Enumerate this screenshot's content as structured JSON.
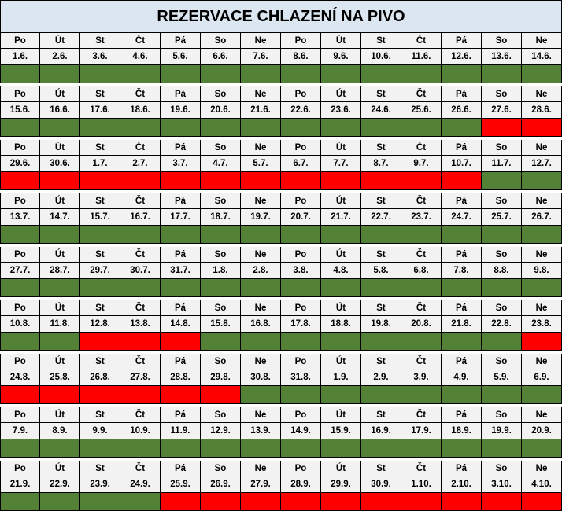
{
  "title": "REZERVACE CHLAZENÍ NA PIVO",
  "colors": {
    "free": "#538135",
    "reserved": "#ff0000",
    "header_bg": "#dce6f1",
    "cell_bg": "#f2f2f2"
  },
  "days": [
    "Po",
    "Út",
    "St",
    "Čt",
    "Pá",
    "So",
    "Ne",
    "Po",
    "Út",
    "St",
    "Čt",
    "Pá",
    "So",
    "Ne"
  ],
  "weeks": [
    {
      "dates": [
        "1.6.",
        "2.6.",
        "3.6.",
        "4.6.",
        "5.6.",
        "6.6.",
        "7.6.",
        "8.6.",
        "9.6.",
        "10.6.",
        "11.6.",
        "12.6.",
        "13.6.",
        "14.6."
      ],
      "status": [
        "free",
        "free",
        "free",
        "free",
        "free",
        "free",
        "free",
        "free",
        "free",
        "free",
        "free",
        "free",
        "free",
        "free"
      ]
    },
    {
      "dates": [
        "15.6.",
        "16.6.",
        "17.6.",
        "18.6.",
        "19.6.",
        "20.6.",
        "21.6.",
        "22.6.",
        "23.6.",
        "24.6.",
        "25.6.",
        "26.6.",
        "27.6.",
        "28.6."
      ],
      "status": [
        "free",
        "free",
        "free",
        "free",
        "free",
        "free",
        "free",
        "free",
        "free",
        "free",
        "free",
        "free",
        "reserved",
        "reserved"
      ]
    },
    {
      "dates": [
        "29.6.",
        "30.6.",
        "1.7.",
        "2.7.",
        "3.7.",
        "4.7.",
        "5.7.",
        "6.7.",
        "7.7.",
        "8.7.",
        "9.7.",
        "10.7.",
        "11.7.",
        "12.7."
      ],
      "status": [
        "reserved",
        "reserved",
        "reserved",
        "reserved",
        "reserved",
        "reserved",
        "reserved",
        "reserved",
        "reserved",
        "reserved",
        "reserved",
        "reserved",
        "free",
        "free"
      ]
    },
    {
      "dates": [
        "13.7.",
        "14.7.",
        "15.7.",
        "16.7.",
        "17.7.",
        "18.7.",
        "19.7.",
        "20.7.",
        "21.7.",
        "22.7.",
        "23.7.",
        "24.7.",
        "25.7.",
        "26.7."
      ],
      "status": [
        "free",
        "free",
        "free",
        "free",
        "free",
        "free",
        "free",
        "free",
        "free",
        "free",
        "free",
        "free",
        "free",
        "free"
      ]
    },
    {
      "dates": [
        "27.7.",
        "28.7.",
        "29.7.",
        "30.7.",
        "31.7.",
        "1.8.",
        "2.8.",
        "3.8.",
        "4.8.",
        "5.8.",
        "6.8.",
        "7.8.",
        "8.8.",
        "9.8."
      ],
      "status": [
        "free",
        "free",
        "free",
        "free",
        "free",
        "free",
        "free",
        "free",
        "free",
        "free",
        "free",
        "free",
        "free",
        "free"
      ]
    },
    {
      "dates": [
        "10.8.",
        "11.8.",
        "12.8.",
        "13.8.",
        "14.8.",
        "15.8.",
        "16.8.",
        "17.8.",
        "18.8.",
        "19.8.",
        "20.8.",
        "21.8.",
        "22.8.",
        "23.8."
      ],
      "status": [
        "free",
        "free",
        "reserved",
        "reserved",
        "reserved",
        "free",
        "free",
        "free",
        "free",
        "free",
        "free",
        "free",
        "free",
        "reserved"
      ]
    },
    {
      "dates": [
        "24.8.",
        "25.8.",
        "26.8.",
        "27.8.",
        "28.8.",
        "29.8.",
        "30.8.",
        "31.8.",
        "1.9.",
        "2.9.",
        "3.9.",
        "4.9.",
        "5.9.",
        "6.9."
      ],
      "status": [
        "reserved",
        "reserved",
        "reserved",
        "reserved",
        "reserved",
        "reserved",
        "free",
        "free",
        "free",
        "free",
        "free",
        "free",
        "free",
        "free"
      ]
    },
    {
      "dates": [
        "7.9.",
        "8.9.",
        "9.9.",
        "10.9.",
        "11.9.",
        "12.9.",
        "13.9.",
        "14.9.",
        "15.9.",
        "16.9.",
        "17.9.",
        "18.9.",
        "19.9.",
        "20.9."
      ],
      "status": [
        "free",
        "free",
        "free",
        "free",
        "free",
        "free",
        "free",
        "free",
        "free",
        "free",
        "free",
        "free",
        "free",
        "free"
      ]
    },
    {
      "dates": [
        "21.9.",
        "22.9.",
        "23.9.",
        "24.9.",
        "25.9.",
        "26.9.",
        "27.9.",
        "28.9.",
        "29.9.",
        "30.9.",
        "1.10.",
        "2.10.",
        "3.10.",
        "4.10."
      ],
      "status": [
        "free",
        "free",
        "free",
        "free",
        "reserved",
        "reserved",
        "reserved",
        "reserved",
        "reserved",
        "reserved",
        "reserved",
        "reserved",
        "reserved",
        "reserved"
      ]
    }
  ]
}
